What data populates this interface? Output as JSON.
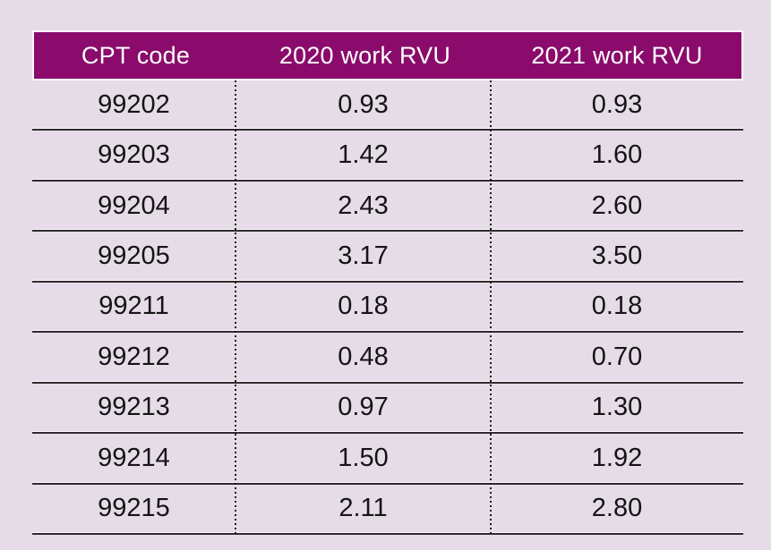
{
  "table": {
    "header": {
      "columns": [
        {
          "label": "CPT code"
        },
        {
          "label": "2020 work RVU"
        },
        {
          "label": "2021 work RVU"
        }
      ]
    },
    "rows": [
      {
        "cpt_code": "99202",
        "rvu_2020": "0.93",
        "rvu_2021": "0.93"
      },
      {
        "cpt_code": "99203",
        "rvu_2020": "1.42",
        "rvu_2021": "1.60"
      },
      {
        "cpt_code": "99204",
        "rvu_2020": "2.43",
        "rvu_2021": "2.60"
      },
      {
        "cpt_code": "99205",
        "rvu_2020": "3.17",
        "rvu_2021": "3.50"
      },
      {
        "cpt_code": "99211",
        "rvu_2020": "0.18",
        "rvu_2021": "0.18"
      },
      {
        "cpt_code": "99212",
        "rvu_2020": "0.48",
        "rvu_2021": "0.70"
      },
      {
        "cpt_code": "99213",
        "rvu_2020": "0.97",
        "rvu_2021": "1.30"
      },
      {
        "cpt_code": "99214",
        "rvu_2020": "1.50",
        "rvu_2021": "1.92"
      },
      {
        "cpt_code": "99215",
        "rvu_2020": "2.11",
        "rvu_2021": "2.80"
      }
    ]
  },
  "colors": {
    "page_background": "#E6DCE8",
    "header_background": "#8A0B6B",
    "header_text": "#FFFFFF",
    "header_border": "#FCF8FC",
    "body_text": "#141414",
    "row_divider": "#2E2A2E",
    "row_divider_highlight": "#FDFAFD",
    "dotted_divider": "#181418"
  },
  "chart_data": {
    "type": "table",
    "title": "",
    "columns": [
      "CPT code",
      "2020 work RVU",
      "2021 work RVU"
    ],
    "rows": [
      [
        "99202",
        "0.93",
        "0.93"
      ],
      [
        "99203",
        "1.42",
        "1.60"
      ],
      [
        "99204",
        "2.43",
        "2.60"
      ],
      [
        "99205",
        "3.17",
        "3.50"
      ],
      [
        "99211",
        "0.18",
        "0.18"
      ],
      [
        "99212",
        "0.48",
        "0.70"
      ],
      [
        "99213",
        "0.97",
        "1.30"
      ],
      [
        "99214",
        "1.50",
        "1.92"
      ],
      [
        "99215",
        "2.11",
        "2.80"
      ]
    ]
  }
}
